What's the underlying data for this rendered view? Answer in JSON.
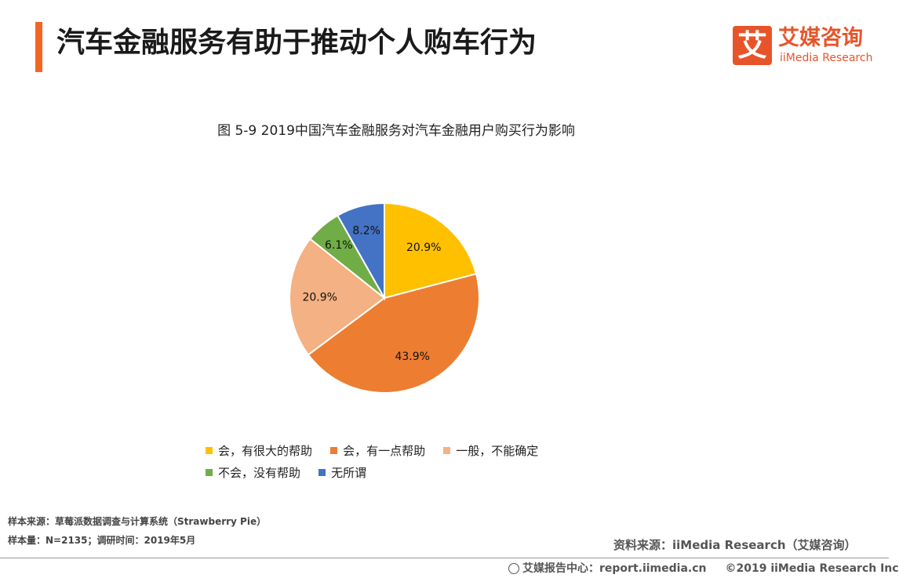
{
  "header": {
    "title": "汽车金融服务有助于推动个人购车行为",
    "logo_cn": "艾媒咨询",
    "logo_en": "iiMedia Research",
    "logo_mark": "艾"
  },
  "chart_data": {
    "type": "pie",
    "title": "图 5-9  2019中国汽车金融服务对汽车金融用户购买行为影响",
    "slices": [
      {
        "label": "会，有很大的帮助",
        "value": 20.9,
        "display": "20.9%",
        "color": "#ffc000"
      },
      {
        "label": "会，有一点帮助",
        "value": 43.9,
        "display": "43.9%",
        "color": "#ed7d31"
      },
      {
        "label": "一般，不能确定",
        "value": 20.9,
        "display": "20.9%",
        "color": "#f4b183"
      },
      {
        "label": "不会，没有帮助",
        "value": 6.1,
        "display": "6.1%",
        "color": "#70ad47"
      },
      {
        "label": "无所谓",
        "value": 8.2,
        "display": "8.2%",
        "color": "#4472c4"
      }
    ],
    "legend_position": "bottom"
  },
  "notes": {
    "sample_source": "样本来源：草莓派数据调查与计算系统（Strawberry Pie）",
    "sample_size": "样本量：N=2135；调研时间：2019年5月"
  },
  "source": "资料来源：iiMedia Research（艾媒咨询）",
  "footer": {
    "center": "艾媒报告中心：report.iimedia.cn",
    "copyright": "©2019  iiMedia Research  Inc"
  }
}
